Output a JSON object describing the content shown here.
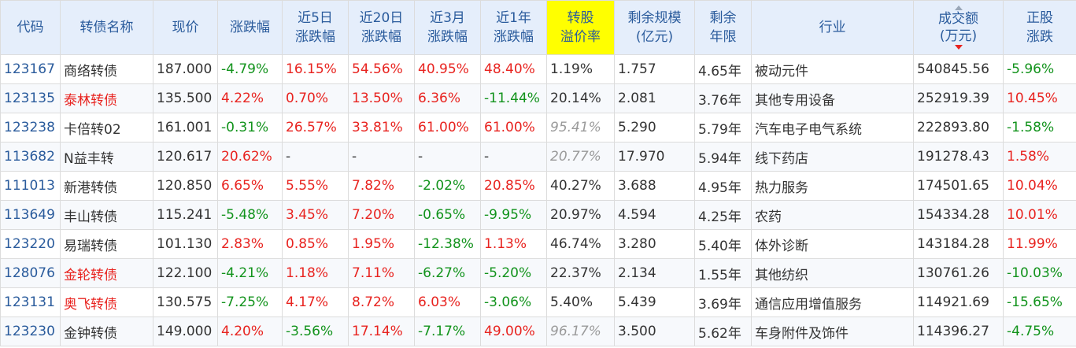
{
  "headers": [
    {
      "key": "code",
      "line1": "代码",
      "line2": ""
    },
    {
      "key": "name",
      "line1": "转债名称",
      "line2": ""
    },
    {
      "key": "price",
      "line1": "现价",
      "line2": ""
    },
    {
      "key": "chg",
      "line1": "涨跌幅",
      "line2": ""
    },
    {
      "key": "chg5",
      "line1": "近5日",
      "line2": "涨跌幅"
    },
    {
      "key": "chg20",
      "line1": "近20日",
      "line2": "涨跌幅"
    },
    {
      "key": "chg3m",
      "line1": "近3月",
      "line2": "涨跌幅"
    },
    {
      "key": "chg1y",
      "line1": "近1年",
      "line2": "涨跌幅"
    },
    {
      "key": "premium",
      "line1": "转股",
      "line2": "溢价率"
    },
    {
      "key": "remain",
      "line1": "剩余规模",
      "line2": "(亿元)"
    },
    {
      "key": "years",
      "line1": "剩余",
      "line2": "年限"
    },
    {
      "key": "industry",
      "line1": "行业",
      "line2": ""
    },
    {
      "key": "volume",
      "line1": "成交额",
      "line2": "(万元)"
    },
    {
      "key": "stock_chg",
      "line1": "正股",
      "line2": "涨跌"
    }
  ],
  "colors": {
    "red": "#e8231f",
    "green": "#12931c",
    "blue": "#2a5b9c",
    "header_bg": "#e5eefb",
    "highlight": "#ffff00"
  },
  "rows": [
    {
      "code": "123167",
      "name": "商络转债",
      "name_c": "black",
      "price": "187.000",
      "chg": "-4.79%",
      "chg_c": "green",
      "chg5": "16.15%",
      "chg5_c": "red",
      "chg20": "54.56%",
      "chg20_c": "red",
      "chg3m": "40.95%",
      "chg3m_c": "red",
      "chg1y": "48.40%",
      "chg1y_c": "red",
      "premium": "1.19%",
      "premium_c": "black",
      "remain": "1.757",
      "years": "4.65年",
      "industry": "被动元件",
      "volume": "540845.56",
      "stock_chg": "-5.96%",
      "stock_chg_c": "green"
    },
    {
      "code": "123135",
      "name": "泰林转债",
      "name_c": "red",
      "price": "135.500",
      "chg": "4.22%",
      "chg_c": "red",
      "chg5": "0.70%",
      "chg5_c": "red",
      "chg20": "13.50%",
      "chg20_c": "red",
      "chg3m": "6.36%",
      "chg3m_c": "red",
      "chg1y": "-11.44%",
      "chg1y_c": "green",
      "premium": "20.14%",
      "premium_c": "black",
      "remain": "2.081",
      "years": "3.76年",
      "industry": "其他专用设备",
      "volume": "252919.39",
      "stock_chg": "10.45%",
      "stock_chg_c": "red"
    },
    {
      "code": "123238",
      "name": "卡倍转02",
      "name_c": "black",
      "price": "161.001",
      "chg": "-0.31%",
      "chg_c": "green",
      "chg5": "26.57%",
      "chg5_c": "red",
      "chg20": "33.81%",
      "chg20_c": "red",
      "chg3m": "61.00%",
      "chg3m_c": "red",
      "chg1y": "61.00%",
      "chg1y_c": "red",
      "premium": "95.41%",
      "premium_c": "gray",
      "remain": "5.290",
      "years": "5.79年",
      "industry": "汽车电子电气系统",
      "volume": "222893.80",
      "stock_chg": "-1.58%",
      "stock_chg_c": "green"
    },
    {
      "code": "113682",
      "name": "N益丰转",
      "name_c": "black",
      "price": "120.617",
      "chg": "20.62%",
      "chg_c": "red",
      "chg5": "-",
      "chg5_c": "black",
      "chg20": "-",
      "chg20_c": "black",
      "chg3m": "-",
      "chg3m_c": "black",
      "chg1y": "-",
      "chg1y_c": "black",
      "premium": "20.77%",
      "premium_c": "gray",
      "remain": "17.970",
      "years": "5.94年",
      "industry": "线下药店",
      "volume": "191278.43",
      "stock_chg": "1.58%",
      "stock_chg_c": "red"
    },
    {
      "code": "111013",
      "name": "新港转债",
      "name_c": "black",
      "price": "120.850",
      "chg": "6.65%",
      "chg_c": "red",
      "chg5": "5.55%",
      "chg5_c": "red",
      "chg20": "7.82%",
      "chg20_c": "red",
      "chg3m": "-2.02%",
      "chg3m_c": "green",
      "chg1y": "20.85%",
      "chg1y_c": "red",
      "premium": "40.27%",
      "premium_c": "black",
      "remain": "3.688",
      "years": "4.95年",
      "industry": "热力服务",
      "volume": "174501.65",
      "stock_chg": "10.04%",
      "stock_chg_c": "red"
    },
    {
      "code": "113649",
      "name": "丰山转债",
      "name_c": "black",
      "price": "115.241",
      "chg": "-5.48%",
      "chg_c": "green",
      "chg5": "3.45%",
      "chg5_c": "red",
      "chg20": "7.20%",
      "chg20_c": "red",
      "chg3m": "-0.65%",
      "chg3m_c": "green",
      "chg1y": "-9.95%",
      "chg1y_c": "green",
      "premium": "20.97%",
      "premium_c": "black",
      "remain": "4.594",
      "years": "4.25年",
      "industry": "农药",
      "volume": "154334.28",
      "stock_chg": "10.01%",
      "stock_chg_c": "red"
    },
    {
      "code": "123220",
      "name": "易瑞转债",
      "name_c": "black",
      "price": "101.130",
      "chg": "2.83%",
      "chg_c": "red",
      "chg5": "0.85%",
      "chg5_c": "red",
      "chg20": "1.95%",
      "chg20_c": "red",
      "chg3m": "-12.38%",
      "chg3m_c": "green",
      "chg1y": "1.13%",
      "chg1y_c": "red",
      "premium": "46.74%",
      "premium_c": "black",
      "remain": "3.280",
      "years": "5.40年",
      "industry": "体外诊断",
      "volume": "143184.28",
      "stock_chg": "11.99%",
      "stock_chg_c": "red"
    },
    {
      "code": "128076",
      "name": "金轮转债",
      "name_c": "red",
      "price": "122.100",
      "chg": "-4.21%",
      "chg_c": "green",
      "chg5": "1.18%",
      "chg5_c": "red",
      "chg20": "7.11%",
      "chg20_c": "red",
      "chg3m": "-6.27%",
      "chg3m_c": "green",
      "chg1y": "-5.20%",
      "chg1y_c": "green",
      "premium": "22.37%",
      "premium_c": "black",
      "remain": "2.134",
      "years": "1.55年",
      "industry": "其他纺织",
      "volume": "130761.26",
      "stock_chg": "-10.03%",
      "stock_chg_c": "green"
    },
    {
      "code": "123131",
      "name": "奥飞转债",
      "name_c": "red",
      "price": "130.575",
      "chg": "-7.25%",
      "chg_c": "green",
      "chg5": "4.17%",
      "chg5_c": "red",
      "chg20": "8.72%",
      "chg20_c": "red",
      "chg3m": "6.03%",
      "chg3m_c": "red",
      "chg1y": "-3.06%",
      "chg1y_c": "green",
      "premium": "5.40%",
      "premium_c": "black",
      "remain": "5.439",
      "years": "3.69年",
      "industry": "通信应用增值服务",
      "volume": "114921.69",
      "stock_chg": "-15.65%",
      "stock_chg_c": "green"
    },
    {
      "code": "123230",
      "name": "金钟转债",
      "name_c": "black",
      "price": "149.000",
      "chg": "4.20%",
      "chg_c": "red",
      "chg5": "-3.56%",
      "chg5_c": "green",
      "chg20": "17.14%",
      "chg20_c": "red",
      "chg3m": "-7.17%",
      "chg3m_c": "green",
      "chg1y": "49.00%",
      "chg1y_c": "red",
      "premium": "96.17%",
      "premium_c": "gray",
      "remain": "3.500",
      "years": "5.62年",
      "industry": "车身附件及饰件",
      "volume": "114396.27",
      "stock_chg": "-4.75%",
      "stock_chg_c": "green"
    }
  ]
}
